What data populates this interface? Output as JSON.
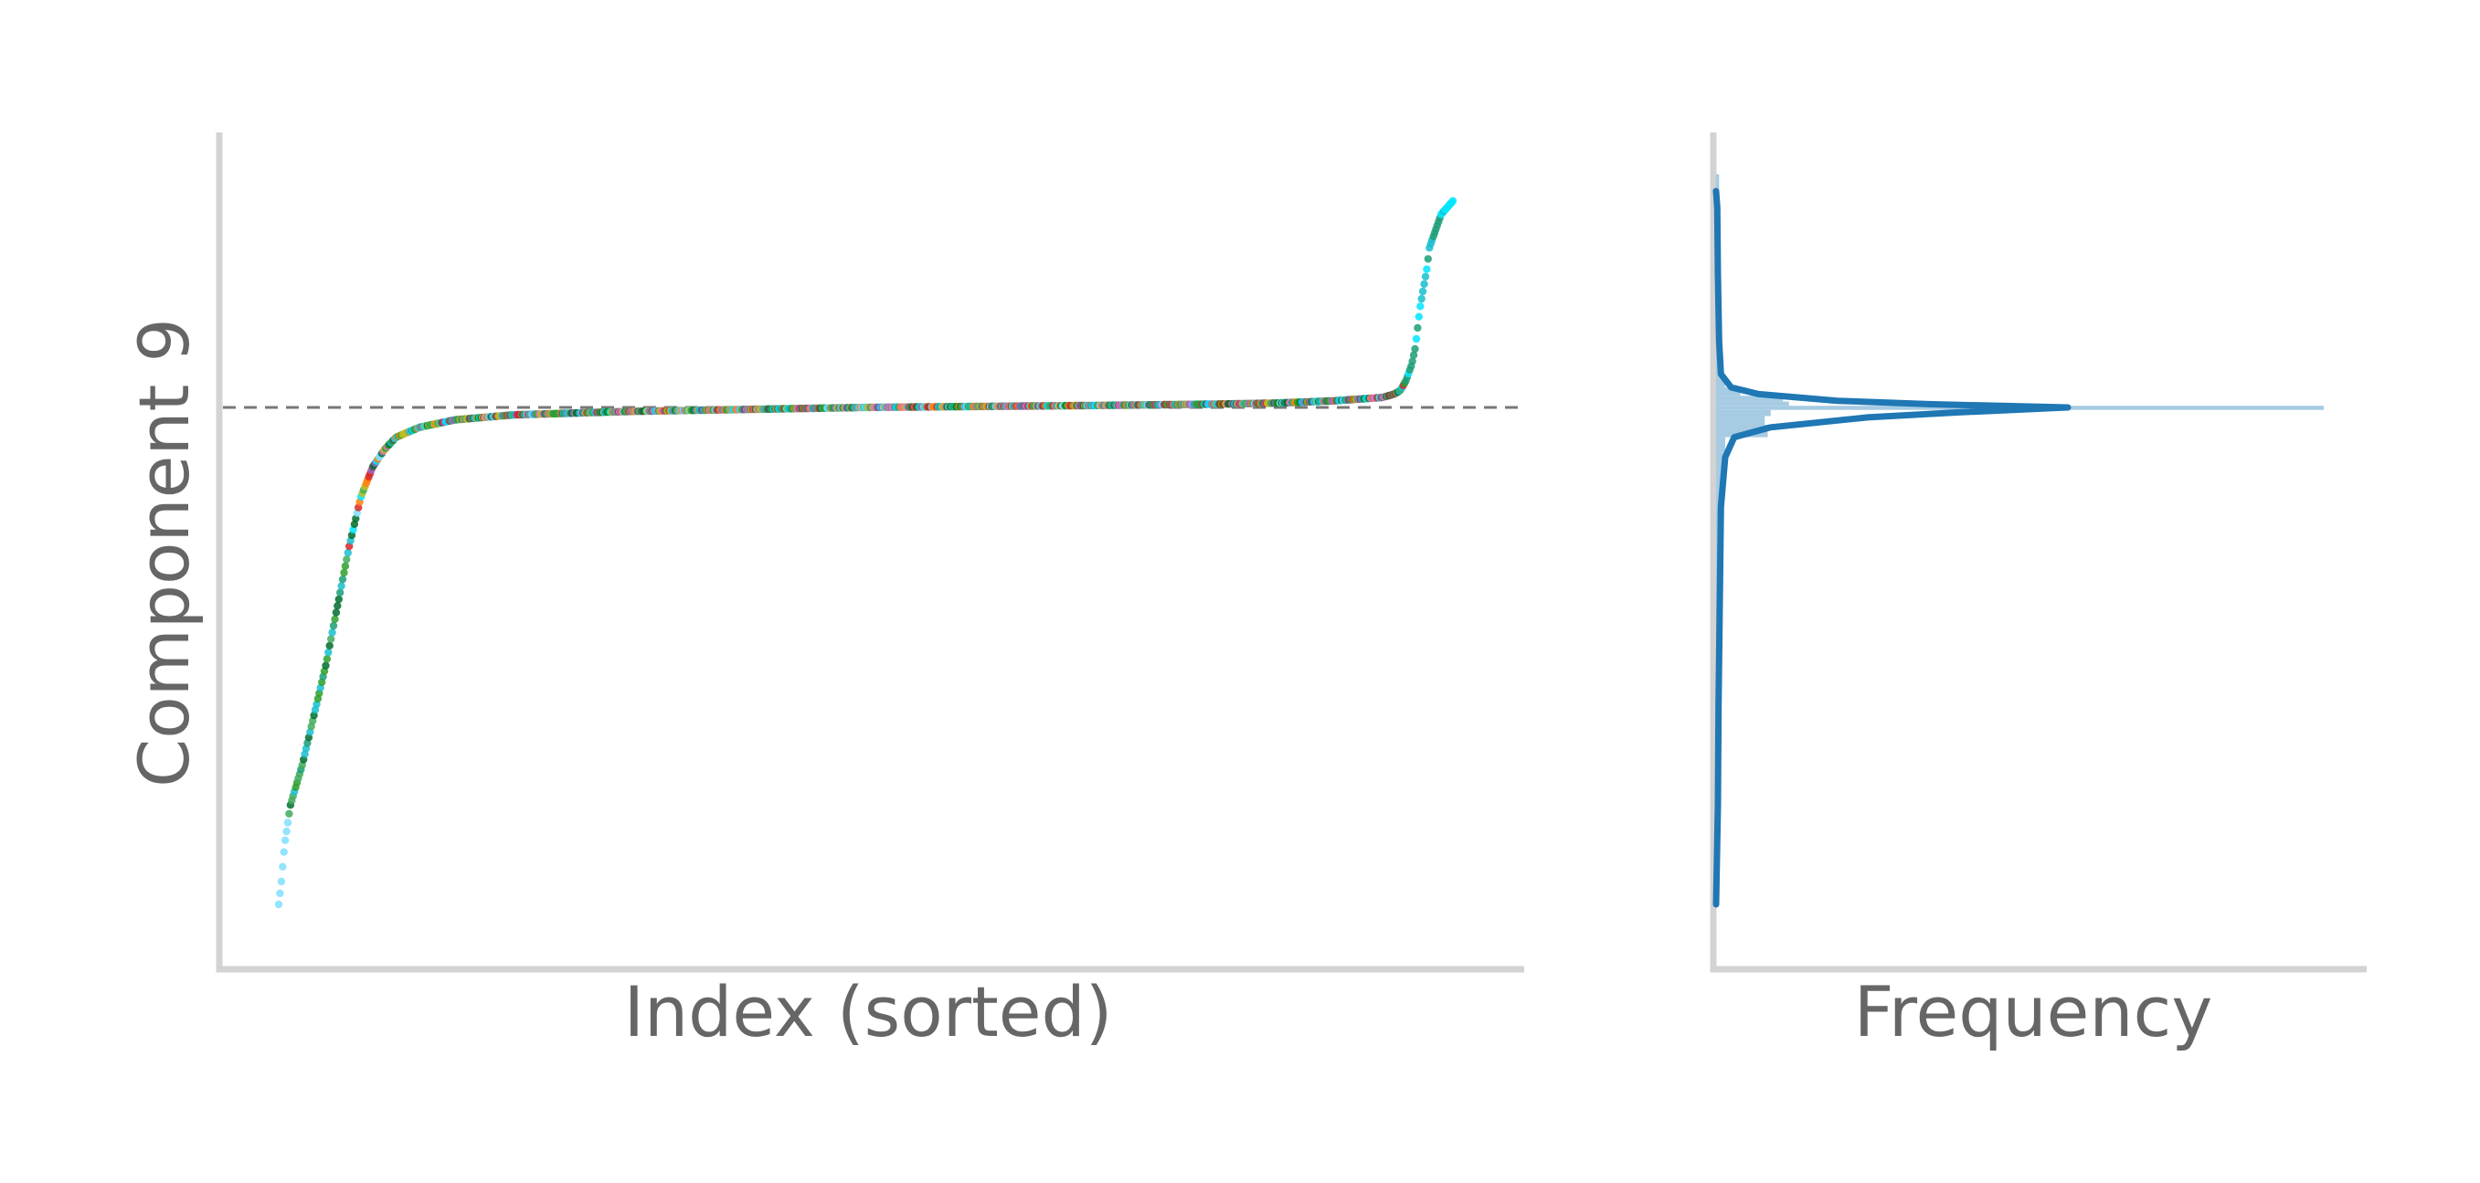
{
  "chart_data": [
    {
      "type": "scatter",
      "title": "",
      "xlabel": "Index (sorted)",
      "ylabel": "Component 9",
      "x_range": [
        0,
        1000
      ],
      "ylim": [
        -1.0,
        1.0
      ],
      "reference_line": {
        "y": 0.0,
        "style": "dashed",
        "color": "#777777"
      },
      "grid": false,
      "sorted_curve_profile": {
        "x": [
          0,
          2,
          5,
          10,
          20,
          30,
          40,
          50,
          60,
          70,
          80,
          90,
          100,
          120,
          150,
          200,
          300,
          400,
          500,
          600,
          700,
          800,
          850,
          900,
          920,
          940,
          950,
          955,
          960,
          965,
          968,
          970,
          972,
          975,
          978,
          980,
          985,
          990,
          995,
          1000
        ],
        "y": [
          -1.0,
          -0.96,
          -0.88,
          -0.8,
          -0.72,
          -0.62,
          -0.52,
          -0.4,
          -0.28,
          -0.18,
          -0.12,
          -0.085,
          -0.06,
          -0.04,
          -0.025,
          -0.015,
          -0.008,
          -0.004,
          0.0,
          0.003,
          0.006,
          0.01,
          0.013,
          0.02,
          0.025,
          0.03,
          0.04,
          0.05,
          0.08,
          0.13,
          0.18,
          0.24,
          0.3,
          0.36,
          0.42,
          0.48,
          0.53,
          0.58,
          0.6,
          0.62
        ]
      },
      "point_palette": [
        "#1b9e77",
        "#2ca02c",
        "#17becf",
        "#00e5ff",
        "#7fdfff",
        "#006d2c",
        "#41ab5d",
        "#d62728",
        "#ff7f0e",
        "#9467bd",
        "#8c8c8c",
        "#e377c2",
        "#bcbd22",
        "#555555"
      ]
    },
    {
      "type": "area",
      "title": "",
      "xlabel": "Frequency",
      "ylabel": "",
      "ylim": [
        -1.0,
        1.0
      ],
      "histogram": {
        "bin_centers": [
          -0.95,
          -0.85,
          -0.75,
          -0.65,
          -0.55,
          -0.45,
          -0.35,
          -0.25,
          -0.15,
          -0.105,
          -0.075,
          -0.045,
          -0.025,
          -0.01,
          0.0,
          0.01,
          0.025,
          0.045,
          0.075,
          0.105,
          0.15,
          0.25,
          0.35,
          0.45,
          0.55,
          0.65
        ],
        "relative_counts": [
          0.005,
          0.005,
          0.006,
          0.006,
          0.006,
          0.007,
          0.007,
          0.008,
          0.009,
          0.012,
          0.015,
          0.085,
          0.08,
          0.09,
          1.0,
          0.12,
          0.11,
          0.04,
          0.015,
          0.01,
          0.008,
          0.006,
          0.006,
          0.005,
          0.005,
          0.005
        ],
        "color": "#a6cbe3"
      },
      "kde": {
        "y": [
          -1.0,
          -0.8,
          -0.6,
          -0.4,
          -0.2,
          -0.1,
          -0.06,
          -0.04,
          -0.02,
          -0.01,
          0.0,
          0.01,
          0.02,
          0.04,
          0.06,
          0.1,
          0.2,
          0.4,
          0.6,
          0.65
        ],
        "density": [
          0.0,
          0.003,
          0.004,
          0.006,
          0.008,
          0.015,
          0.03,
          0.09,
          0.25,
          0.4,
          0.58,
          0.35,
          0.2,
          0.07,
          0.025,
          0.008,
          0.005,
          0.003,
          0.002,
          0.0
        ],
        "color": "#1f77b4"
      }
    }
  ]
}
